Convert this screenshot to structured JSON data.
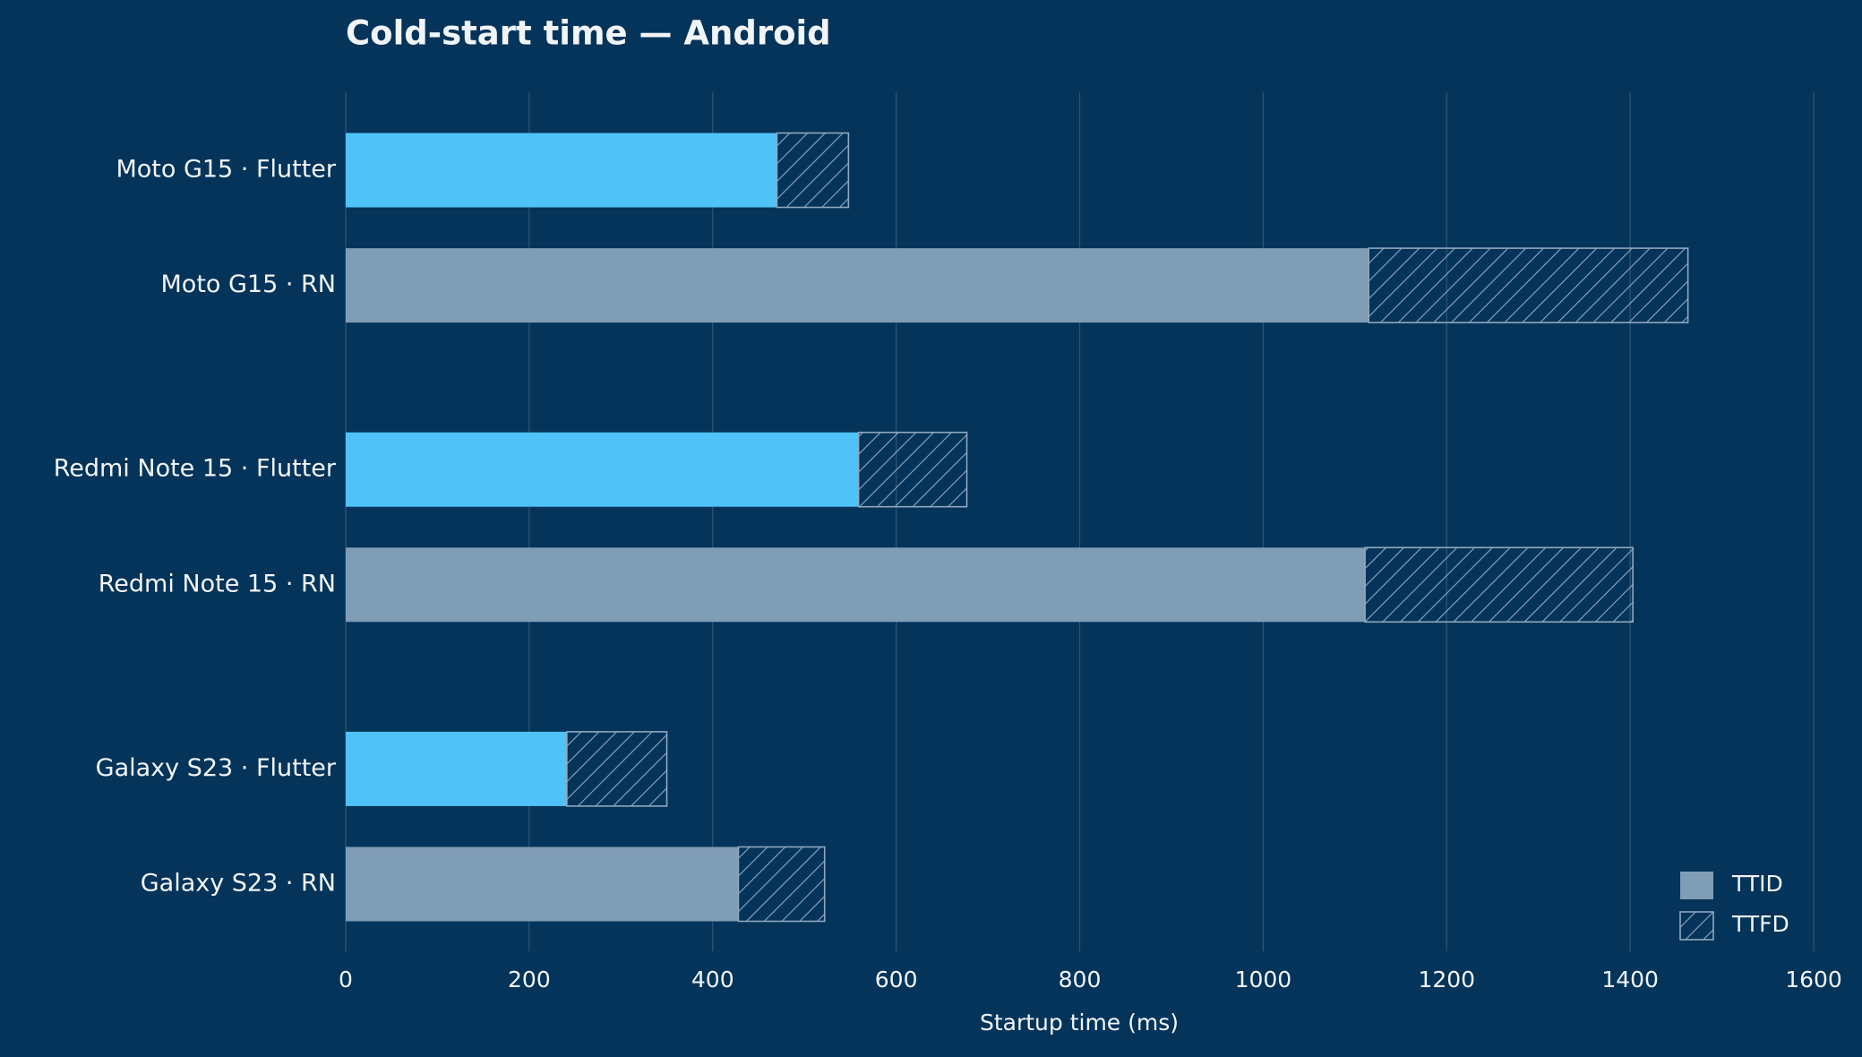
{
  "chart_data": {
    "type": "stacked-barh",
    "title": "Cold-start time — Android",
    "x_label": "Startup time (ms)",
    "categories": [
      "Moto G15 · Flutter",
      "Moto G15 · RN",
      "Redmi Note 15 · Flutter",
      "Redmi Note 15 · RN",
      "Galaxy S23 · Flutter",
      "Galaxy S23 · RN"
    ],
    "series": [
      {
        "name": "TTID",
        "color": "#7f9db5",
        "colors": [
          "#4fc3f7",
          "#7f9db5",
          "#4fc3f7",
          "#7f9db5",
          "#4fc3f7",
          "#7f9db5"
        ],
        "values": [
          470,
          1115,
          559,
          1111,
          241,
          428
        ]
      },
      {
        "name": "TTFD",
        "color": "#8fa8c0",
        "hatch": true,
        "values": [
          78,
          348,
          118,
          292,
          109,
          94
        ]
      }
    ],
    "xlim": [
      0,
      1600
    ],
    "xticks": [
      0,
      200,
      400,
      600,
      800,
      1000,
      1200,
      1400,
      1600
    ],
    "grid": true,
    "legend": "lower right"
  }
}
